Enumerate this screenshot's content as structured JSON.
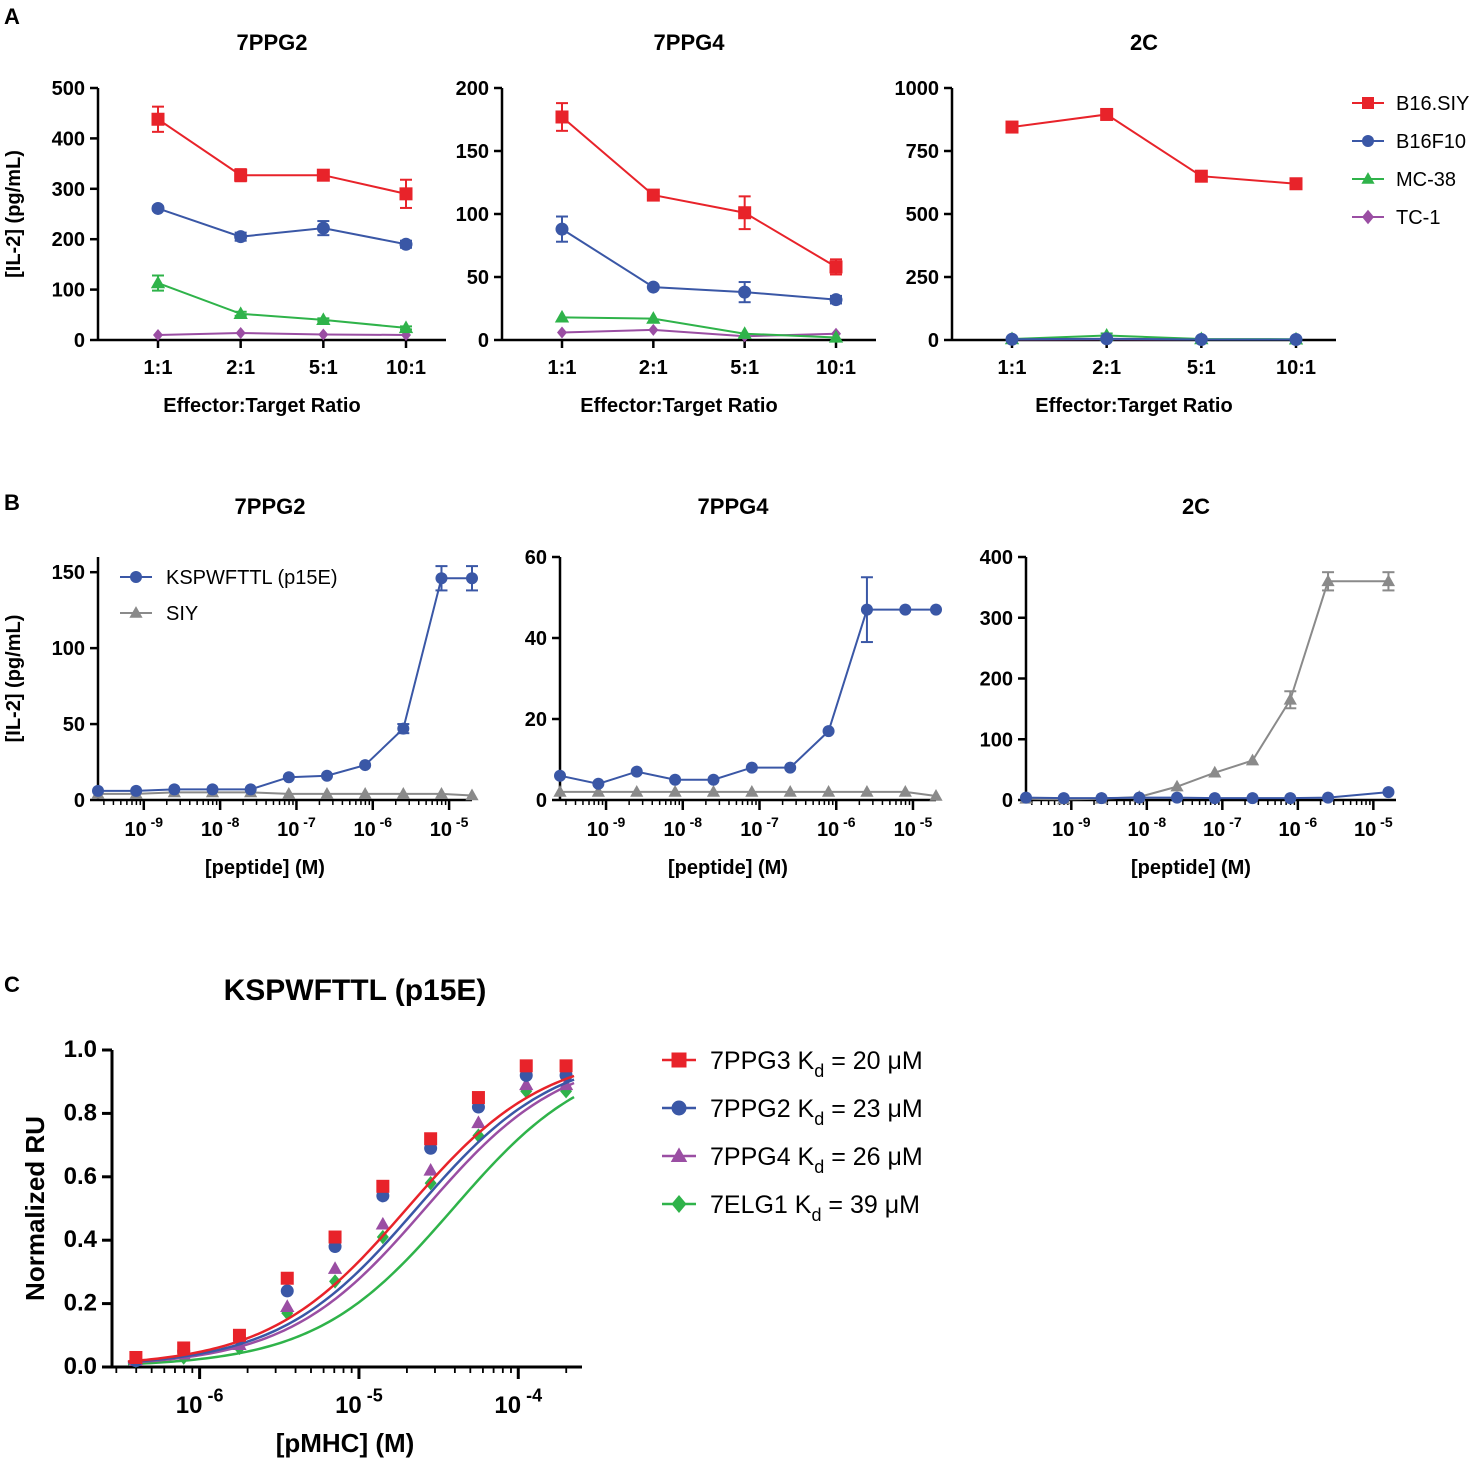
{
  "panel_labels": [
    "A",
    "B",
    "C"
  ],
  "colors": {
    "B16.SIY": "#e8232a",
    "B16F10": "#3a57a6",
    "MC-38": "#2fb34a",
    "TC-1": "#9a4ea3",
    "SIY": "#8a8a8a",
    "7PPG3": "#e8232a",
    "7PPG2": "#3a57a6",
    "7PPG4": "#9a4ea3",
    "7ELG1": "#2fb34a"
  },
  "chart_data": [
    {
      "type": "line",
      "panel": "A",
      "title": "7PPG2",
      "xlabel": "Effector:Target Ratio",
      "ylabel": "[IL-2] (pg/mL)",
      "categories": [
        "1:1",
        "2:1",
        "5:1",
        "10:1"
      ],
      "ylim": [
        0,
        500
      ],
      "yticks": [
        "0",
        "100",
        "200",
        "300",
        "400",
        "500"
      ],
      "series": [
        {
          "name": "B16.SIY",
          "marker": "square",
          "values": [
            438,
            327,
            327,
            290
          ],
          "errors": [
            25,
            12,
            4,
            28
          ]
        },
        {
          "name": "B16F10",
          "marker": "circle",
          "values": [
            261,
            205,
            222,
            190
          ],
          "errors": [
            4,
            8,
            14,
            7
          ]
        },
        {
          "name": "MC-38",
          "marker": "triangle",
          "values": [
            113,
            52,
            40,
            24
          ],
          "errors": [
            15,
            4,
            3,
            3
          ]
        },
        {
          "name": "TC-1",
          "marker": "diamond",
          "values": [
            10,
            14,
            11,
            10
          ],
          "errors": [
            1,
            1,
            1,
            1
          ]
        }
      ]
    },
    {
      "type": "line",
      "panel": "A",
      "title": "7PPG4",
      "xlabel": "Effector:Target Ratio",
      "ylabel": "",
      "categories": [
        "1:1",
        "2:1",
        "5:1",
        "10:1"
      ],
      "ylim": [
        0,
        200
      ],
      "yticks": [
        "0",
        "50",
        "100",
        "150",
        "200"
      ],
      "series": [
        {
          "name": "B16.SIY",
          "marker": "square",
          "values": [
            177,
            115,
            101,
            58
          ],
          "errors": [
            11,
            4,
            13,
            6
          ]
        },
        {
          "name": "B16F10",
          "marker": "circle",
          "values": [
            88,
            42,
            38,
            32
          ],
          "errors": [
            10,
            2,
            8,
            3
          ]
        },
        {
          "name": "MC-38",
          "marker": "triangle",
          "values": [
            18,
            17,
            5,
            2
          ],
          "errors": [
            1,
            1,
            1,
            1
          ]
        },
        {
          "name": "TC-1",
          "marker": "diamond",
          "values": [
            6,
            8,
            3,
            5
          ],
          "errors": [
            1,
            1,
            1,
            1
          ]
        }
      ]
    },
    {
      "type": "line",
      "panel": "A",
      "title": "2C",
      "xlabel": "Effector:Target Ratio",
      "ylabel": "",
      "categories": [
        "1:1",
        "2:1",
        "5:1",
        "10:1"
      ],
      "ylim": [
        0,
        1000
      ],
      "yticks": [
        "0",
        "250",
        "500",
        "750",
        "1000"
      ],
      "series": [
        {
          "name": "B16.SIY",
          "marker": "square",
          "values": [
            845,
            895,
            650,
            620
          ],
          "errors": [
            8,
            10,
            6,
            5
          ]
        },
        {
          "name": "B16F10",
          "marker": "circle",
          "values": [
            3,
            5,
            2,
            2
          ],
          "errors": [
            1,
            2,
            1,
            1
          ]
        },
        {
          "name": "MC-38",
          "marker": "triangle",
          "values": [
            4,
            18,
            4,
            3
          ],
          "errors": [
            1,
            8,
            1,
            1
          ]
        },
        {
          "name": "TC-1",
          "marker": "diamond",
          "values": [
            2,
            3,
            2,
            2
          ],
          "errors": [
            1,
            1,
            1,
            1
          ]
        }
      ],
      "legend": [
        "B16.SIY",
        "B16F10",
        "MC-38",
        "TC-1"
      ],
      "legend_position": "right"
    },
    {
      "type": "line",
      "panel": "B",
      "title": "7PPG2",
      "xlabel": "[peptide] (M)",
      "ylabel": "[IL-2] (pg/mL)",
      "xscale": "log",
      "xlim_exp": [
        -9.6,
        -4.7
      ],
      "xticks": [
        {
          "base": "10",
          "exp": "-9"
        },
        {
          "base": "10",
          "exp": "-8"
        },
        {
          "base": "10",
          "exp": "-7"
        },
        {
          "base": "10",
          "exp": "-6"
        },
        {
          "base": "10",
          "exp": "-5"
        }
      ],
      "ylim": [
        0,
        160
      ],
      "yticks": [
        "0",
        "50",
        "100",
        "150"
      ],
      "x_exp": [
        -9.6,
        -9.1,
        -8.6,
        -8.1,
        -7.6,
        -7.1,
        -6.6,
        -6.1,
        -5.6,
        -5.1,
        -4.7
      ],
      "series": [
        {
          "name": "KSPWFTTL (p15E)",
          "marker": "circle",
          "values": [
            6,
            6,
            7,
            7,
            7,
            15,
            16,
            23,
            47,
            146,
            146
          ],
          "errors": [
            0,
            0,
            0,
            0,
            0,
            0,
            0,
            0,
            3,
            8,
            8
          ]
        },
        {
          "name": "SIY",
          "marker": "triangle",
          "values": [
            4,
            4,
            5,
            5,
            5,
            4,
            4,
            4,
            4,
            4,
            3
          ],
          "errors": [
            0,
            0,
            0,
            0,
            0,
            0,
            0,
            0,
            0,
            0,
            0
          ]
        }
      ],
      "legend": [
        "KSPWFTTL (p15E)",
        "SIY"
      ],
      "legend_position": "top-left"
    },
    {
      "type": "line",
      "panel": "B",
      "title": "7PPG4",
      "xlabel": "[peptide] (M)",
      "ylabel": "",
      "xscale": "log",
      "xlim_exp": [
        -9.6,
        -4.7
      ],
      "xticks": [
        {
          "base": "10",
          "exp": "-9"
        },
        {
          "base": "10",
          "exp": "-8"
        },
        {
          "base": "10",
          "exp": "-7"
        },
        {
          "base": "10",
          "exp": "-6"
        },
        {
          "base": "10",
          "exp": "-5"
        }
      ],
      "ylim": [
        0,
        60
      ],
      "yticks": [
        "0",
        "20",
        "40",
        "60"
      ],
      "x_exp": [
        -9.6,
        -9.1,
        -8.6,
        -8.1,
        -7.6,
        -7.1,
        -6.6,
        -6.1,
        -5.6,
        -5.1,
        -4.7
      ],
      "series": [
        {
          "name": "KSPWFTTL (p15E)",
          "marker": "circle",
          "values": [
            6,
            4,
            7,
            5,
            5,
            8,
            8,
            17,
            47,
            47,
            47
          ],
          "errors": [
            0,
            0,
            0,
            0,
            0,
            0,
            0,
            0,
            8,
            0,
            0
          ]
        },
        {
          "name": "SIY",
          "marker": "triangle",
          "values": [
            2,
            2,
            2,
            2,
            2,
            2,
            2,
            2,
            2,
            2,
            1
          ],
          "errors": [
            0,
            0,
            0,
            0,
            0,
            0,
            0,
            0,
            0,
            0,
            0
          ]
        }
      ]
    },
    {
      "type": "line",
      "panel": "B",
      "title": "2C",
      "xlabel": "[peptide] (M)",
      "ylabel": "",
      "xscale": "log",
      "xlim_exp": [
        -9.6,
        -4.7
      ],
      "xticks": [
        {
          "base": "10",
          "exp": "-9"
        },
        {
          "base": "10",
          "exp": "-8"
        },
        {
          "base": "10",
          "exp": "-7"
        },
        {
          "base": "10",
          "exp": "-6"
        },
        {
          "base": "10",
          "exp": "-5"
        }
      ],
      "ylim": [
        0,
        400
      ],
      "yticks": [
        "0",
        "100",
        "200",
        "300",
        "400"
      ],
      "x_exp": [
        -9.6,
        -9.1,
        -8.6,
        -8.1,
        -7.6,
        -7.1,
        -6.6,
        -6.1,
        -5.6,
        -4.8
      ],
      "series": [
        {
          "name": "KSPWFTTL (p15E)",
          "marker": "circle",
          "values": [
            4,
            3,
            3,
            4,
            4,
            3,
            3,
            3,
            4,
            13
          ],
          "errors": [
            0,
            0,
            0,
            0,
            0,
            0,
            0,
            0,
            0,
            0
          ]
        },
        {
          "name": "SIY",
          "marker": "triangle",
          "values": [
            2,
            1,
            2,
            5,
            22,
            45,
            65,
            165,
            360,
            360
          ],
          "errors": [
            0,
            0,
            0,
            0,
            0,
            0,
            0,
            14,
            15,
            15
          ]
        }
      ]
    },
    {
      "type": "scatter",
      "panel": "C",
      "title": "KSPWFTTL (p15E)",
      "xlabel": "[pMHC] (M)",
      "ylabel": "Normalized RU",
      "xscale": "log",
      "xlim_exp": [
        -6.55,
        -3.6
      ],
      "xticks": [
        {
          "base": "10",
          "exp": "-6"
        },
        {
          "base": "10",
          "exp": "-5"
        },
        {
          "base": "10",
          "exp": "-4"
        }
      ],
      "ylim": [
        0,
        1.0
      ],
      "yticks": [
        "0.0",
        "0.2",
        "0.4",
        "0.6",
        "0.8",
        "1.0"
      ],
      "x_exp": [
        -6.4,
        -6.1,
        -5.75,
        -5.45,
        -5.15,
        -4.85,
        -4.55,
        -4.25,
        -3.95,
        -3.7
      ],
      "series": [
        {
          "name": "7PPG3",
          "marker": "square",
          "kd_uM": 20,
          "values": [
            0.03,
            0.06,
            0.1,
            0.28,
            0.41,
            0.57,
            0.72,
            0.85,
            0.95,
            0.95
          ]
        },
        {
          "name": "7PPG2",
          "marker": "circle",
          "kd_uM": 23,
          "values": [
            0.02,
            0.05,
            0.09,
            0.24,
            0.38,
            0.54,
            0.69,
            0.82,
            0.92,
            0.92
          ]
        },
        {
          "name": "7PPG4",
          "marker": "triangle",
          "kd_uM": 26,
          "values": [
            0.02,
            0.04,
            0.07,
            0.19,
            0.31,
            0.45,
            0.62,
            0.77,
            0.89,
            0.89
          ]
        },
        {
          "name": "7ELG1",
          "marker": "diamond",
          "kd_uM": 39,
          "values": [
            0.02,
            0.03,
            0.06,
            0.17,
            0.27,
            0.41,
            0.58,
            0.73,
            0.87,
            0.87
          ]
        }
      ],
      "legend": [
        {
          "name": "7PPG3",
          "k": "K",
          "sub": "d",
          "rest": " = 20 μM"
        },
        {
          "name": "7PPG2",
          "k": "K",
          "sub": "d",
          "rest": " = 23 μM"
        },
        {
          "name": "7PPG4",
          "k": "K",
          "sub": "d",
          "rest": " = 26 μM"
        },
        {
          "name": "7ELG1",
          "k": "K",
          "sub": "d",
          "rest": " = 39 μM"
        }
      ],
      "legend_position": "right"
    }
  ]
}
